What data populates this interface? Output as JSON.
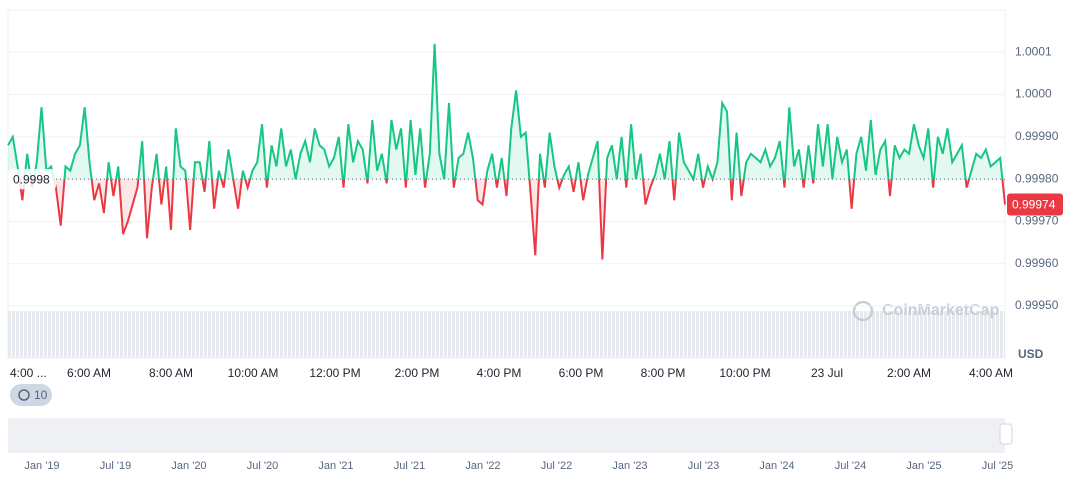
{
  "chart_data": {
    "type": "line",
    "currency": "USD",
    "watermark": "CoinMarketCap",
    "baseline": 0.9998,
    "current_price": 0.99974,
    "history_button": "10",
    "x_labels": [
      "4:00 ...",
      "6:00 AM",
      "8:00 AM",
      "10:00 AM",
      "12:00 PM",
      "2:00 PM",
      "4:00 PM",
      "6:00 PM",
      "8:00 PM",
      "10:00 PM",
      "23 Jul",
      "2:00 AM",
      "4:00 AM"
    ],
    "navigator_labels": [
      "Jan '19",
      "Jul '19",
      "Jan '20",
      "Jul '20",
      "Jan '21",
      "Jul '21",
      "Jan '22",
      "Jul '22",
      "Jan '23",
      "Jul '23",
      "Jan '24",
      "Jul '24",
      "Jan '25",
      "Jul '25"
    ],
    "ylim": [
      0.9995,
      1.0002
    ],
    "yticks": [
      {
        "value": 0.9995,
        "label": "0.99950"
      },
      {
        "value": 0.9996,
        "label": "0.99960"
      },
      {
        "value": 0.9997,
        "label": "0.99970"
      },
      {
        "value": 0.9998,
        "label": "0.99980"
      },
      {
        "value": 0.9999,
        "label": "0.99990"
      },
      {
        "value": 1.0,
        "label": "1.0000"
      },
      1.0001
    ],
    "grid": true,
    "colors": {
      "up": "#16c784",
      "down": "#ea3943"
    },
    "values": [
      0.99988,
      0.9999,
      0.99983,
      0.99975,
      0.99986,
      0.99978,
      0.99984,
      0.99997,
      0.99982,
      0.99983,
      0.99978,
      0.99969,
      0.99983,
      0.99982,
      0.99986,
      0.99988,
      0.99997,
      0.99984,
      0.99975,
      0.99979,
      0.99972,
      0.99984,
      0.99976,
      0.99983,
      0.99967,
      0.9997,
      0.99974,
      0.99978,
      0.99989,
      0.99966,
      0.99978,
      0.99986,
      0.99974,
      0.99983,
      0.99968,
      0.99992,
      0.99983,
      0.99982,
      0.99968,
      0.99984,
      0.99984,
      0.99977,
      0.99989,
      0.99973,
      0.99982,
      0.99978,
      0.99987,
      0.9998,
      0.99973,
      0.99982,
      0.99978,
      0.99982,
      0.99984,
      0.99993,
      0.99978,
      0.99988,
      0.99983,
      0.99992,
      0.99983,
      0.99987,
      0.9998,
      0.99986,
      0.99989,
      0.99984,
      0.99992,
      0.99988,
      0.99987,
      0.99983,
      0.99985,
      0.9999,
      0.99978,
      0.99993,
      0.99984,
      0.99989,
      0.99987,
      0.99979,
      0.99994,
      0.99982,
      0.99986,
      0.99979,
      0.99994,
      0.99987,
      0.99992,
      0.99978,
      0.99994,
      0.99981,
      0.99992,
      0.99978,
      0.99986,
      1.00012,
      0.99986,
      0.9998,
      0.99998,
      0.99978,
      0.99985,
      0.99986,
      0.99991,
      0.99985,
      0.99975,
      0.99974,
      0.99982,
      0.99986,
      0.99978,
      0.99985,
      0.99976,
      0.99992,
      1.00001,
      0.9999,
      0.99991,
      0.99977,
      0.99962,
      0.99986,
      0.99978,
      0.99991,
      0.99983,
      0.99978,
      0.99981,
      0.99983,
      0.99977,
      0.99984,
      0.99975,
      0.99981,
      0.99985,
      0.99989,
      0.99961,
      0.99985,
      0.99988,
      0.9998,
      0.9999,
      0.99978,
      0.99993,
      0.9998,
      0.99986,
      0.99974,
      0.99978,
      0.99981,
      0.99986,
      0.9998,
      0.99989,
      0.99975,
      0.99991,
      0.99984,
      0.99982,
      0.9998,
      0.99986,
      0.99978,
      0.99983,
      0.9998,
      0.99984,
      0.99998,
      0.99996,
      0.99975,
      0.99991,
      0.99976,
      0.99984,
      0.99986,
      0.99985,
      0.99984,
      0.99987,
      0.99983,
      0.99985,
      0.99989,
      0.99978,
      0.99997,
      0.99983,
      0.99987,
      0.99978,
      0.99988,
      0.99979,
      0.99993,
      0.99983,
      0.99993,
      0.9998,
      0.9999,
      0.99984,
      0.99987,
      0.99973,
      0.99986,
      0.9999,
      0.99982,
      0.99994,
      0.99981,
      0.99987,
      0.99989,
      0.99976,
      0.99988,
      0.99985,
      0.99987,
      0.99986,
      0.99993,
      0.99988,
      0.99985,
      0.99992,
      0.99978,
      0.9999,
      0.99986,
      0.99992,
      0.99984,
      0.99986,
      0.99988,
      0.99978,
      0.99982,
      0.99986,
      0.99985,
      0.99987,
      0.99983,
      0.99984,
      0.99985,
      0.99974
    ]
  }
}
